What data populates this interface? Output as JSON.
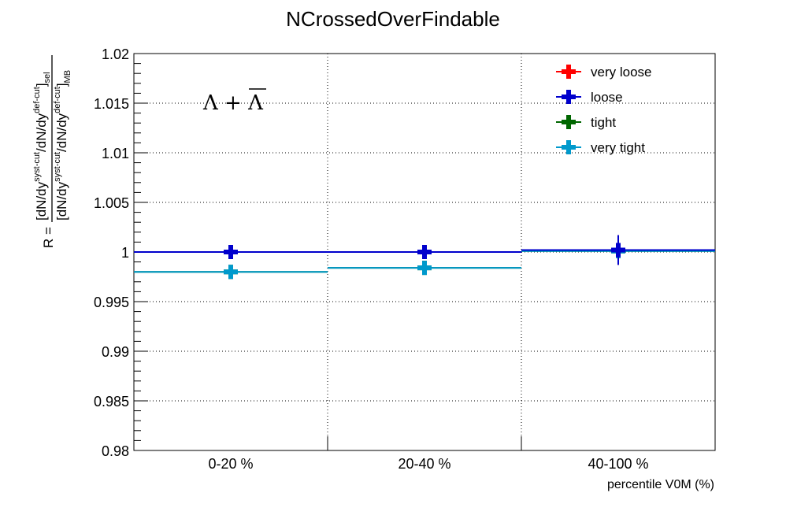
{
  "chart_data": {
    "type": "line",
    "title": "NCrossedOverFindable",
    "xlabel": "percentile V0M (%)",
    "ylabel": {
      "prefix": "R =",
      "numerator": [
        "[dN/dy",
        "syst-cut",
        "/dN/dy",
        "def-cut",
        "]",
        "sel"
      ],
      "denominator": [
        "[dN/dy",
        "syst-cut",
        "/dN/dy",
        "def-cut",
        "]",
        "MB"
      ]
    },
    "annotation": "Λ + Λ",
    "categories": [
      "0-20 %",
      "20-40 %",
      "40-100 %"
    ],
    "bin_edges": [
      0,
      20,
      40,
      100
    ],
    "ylim": [
      0.98,
      1.02
    ],
    "yticks": [
      "0.98",
      "0.985",
      "0.99",
      "0.995",
      "1",
      "1.005",
      "1.01",
      "1.015",
      "1.02"
    ],
    "ytick_values": [
      0.98,
      0.985,
      0.99,
      0.995,
      1.0,
      1.005,
      1.01,
      1.015,
      1.02
    ],
    "grid": true,
    "legend_position": "top-right",
    "series": [
      {
        "name": "very loose",
        "color": "#ff0000",
        "values": [
          1.0,
          1.0,
          1.0002
        ],
        "errors": [
          0.0005,
          0.0005,
          0.0015
        ]
      },
      {
        "name": "loose",
        "color": "#0000cc",
        "values": [
          1.0,
          1.0,
          1.0002
        ],
        "errors": [
          0.0005,
          0.0005,
          0.0015
        ]
      },
      {
        "name": "tight",
        "color": "#006600",
        "values": [
          0.998,
          0.9984,
          1.0001
        ],
        "errors": [
          0.0004,
          0.0004,
          0.0008
        ]
      },
      {
        "name": "very tight",
        "color": "#0099cc",
        "values": [
          0.998,
          0.9984,
          1.0001
        ],
        "errors": [
          0.0004,
          0.0004,
          0.0008
        ]
      }
    ]
  }
}
